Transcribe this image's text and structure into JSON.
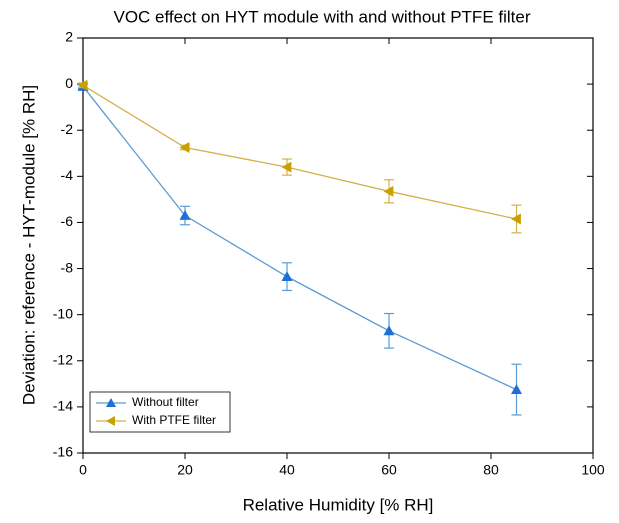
{
  "chart_data": {
    "type": "line",
    "title": "VOC effect on HYT module with and without PTFE filter",
    "xlabel": "Relative Humidity [% RH]",
    "ylabel": "Deviation: reference - HYT-module [% RH]",
    "x": [
      0,
      20,
      40,
      60,
      85
    ],
    "series": [
      {
        "name": "Without filter",
        "color": "#1f6fd8",
        "line_color": "#5b9bd5",
        "marker": "triangle-up",
        "values": [
          -0.1,
          -5.7,
          -8.35,
          -10.7,
          -13.25
        ],
        "errors": [
          0.1,
          0.4,
          0.6,
          0.75,
          1.1
        ]
      },
      {
        "name": "With PTFE filter",
        "color": "#c9a000",
        "line_color": "#d4b04a",
        "marker": "triangle-left",
        "values": [
          -0.05,
          -2.75,
          -3.6,
          -4.65,
          -5.85
        ],
        "errors": [
          0.1,
          0.1,
          0.35,
          0.5,
          0.6
        ]
      }
    ],
    "xlim": [
      0,
      100
    ],
    "xticks": [
      0,
      20,
      40,
      60,
      80,
      100
    ],
    "ylim": [
      -16,
      2
    ],
    "yticks": [
      2,
      0,
      -2,
      -4,
      -6,
      -8,
      -10,
      -12,
      -14,
      -16
    ],
    "grid": false,
    "legend": "lower left"
  }
}
